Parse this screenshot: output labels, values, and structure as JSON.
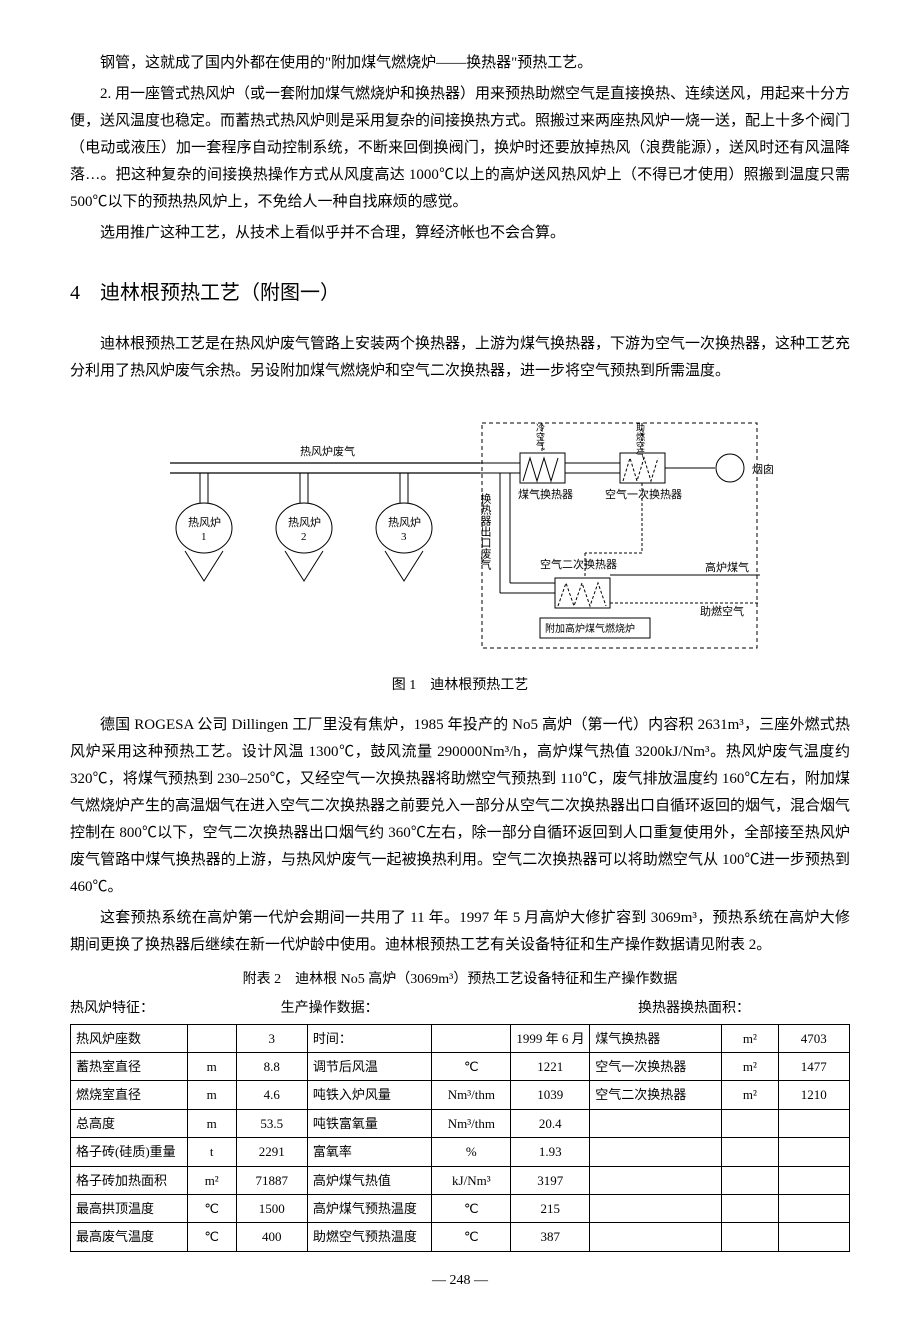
{
  "para1": "钢管，这就成了国内外都在使用的\"附加煤气燃烧炉——换热器\"预热工艺。",
  "para2": "2. 用一座管式热风炉（或一套附加煤气燃烧炉和换热器）用来预热助燃空气是直接换热、连续送风，用起来十分方便，送风温度也稳定。而蓄热式热风炉则是采用复杂的间接换热方式。照搬过来两座热风炉一烧一送，配上十多个阀门（电动或液压）加一套程序自动控制系统，不断来回倒换阀门，换炉时还要放掉热风（浪费能源），送风时还有风温降落…。把这种复杂的间接换热操作方式从风度高达 1000℃以上的高炉送风热风炉上（不得已才使用）照搬到温度只需 500℃以下的预热热风炉上，不免给人一种自找麻烦的感觉。",
  "para3": "选用推广这种工艺，从技术上看似乎并不合理，算经济帐也不会合算。",
  "heading4": "4　迪林根预热工艺（附图一）",
  "para4": "迪林根预热工艺是在热风炉废气管路上安装两个换热器，上游为煤气换热器，下游为空气一次换热器，这种工艺充分利用了热风炉废气余热。另设附加煤气燃烧炉和空气二次换热器，进一步将空气预热到所需温度。",
  "fig1_caption": "图 1　迪林根预热工艺",
  "diagram": {
    "stove_waste_gas": "热风炉废气",
    "stove1": "热风炉",
    "n1": "1",
    "stove2": "热风炉",
    "n2": "2",
    "stove3": "热风炉",
    "n3": "3",
    "outlet_waste": "换热器出口废气",
    "cold_air": "冷空气",
    "combustion_air": "助燃空气",
    "gas_exchanger": "煤气换热器",
    "air_primary": "空气一次换热器",
    "chimney": "烟囱",
    "air_secondary": "空气二次换热器",
    "bf_gas": "高炉煤气",
    "comb_air2": "助燃空气",
    "burner": "附加高炉煤气燃烧炉"
  },
  "para5": "德国 ROGESA 公司 Dillingen 工厂里没有焦炉，1985 年投产的 No5 高炉（第一代）内容积 2631m³，三座外燃式热风炉采用这种预热工艺。设计风温 1300℃，鼓风流量 290000Nm³/h，高炉煤气热值 3200kJ/Nm³。热风炉废气温度约 320℃，将煤气预热到 230–250℃，又经空气一次换热器将助燃空气预热到 110℃，废气排放温度约 160℃左右，附加煤气燃烧炉产生的高温烟气在进入空气二次换热器之前要兑入一部分从空气二次换热器出口自循环返回的烟气，混合烟气控制在 800℃以下，空气二次换热器出口烟气约 360℃左右，除一部分自循环返回到人口重复使用外，全部接至热风炉废气管路中煤气换热器的上游，与热风炉废气一起被换热利用。空气二次换热器可以将助燃空气从 100℃进一步预热到 460℃。",
  "para6": "这套预热系统在高炉第一代炉会期间一共用了 11 年。1997 年 5 月高炉大修扩容到 3069m³，预热系统在高炉大修期间更换了换热器后继续在新一代炉龄中使用。迪林根预热工艺有关设备特征和生产操作数据请见附表 2。",
  "table2_caption": "附表 2　迪林根 No5 高炉（3069m³）预热工艺设备特征和生产操作数据",
  "hlabel1": "热风炉特征：",
  "hlabel2": "生产操作数据：",
  "hlabel3": "换热器换热面积：",
  "table": {
    "rows": [
      [
        "热风炉座数",
        "",
        "3",
        "时间：",
        "",
        "1999 年 6 月",
        "煤气换热器",
        "m²",
        "4703"
      ],
      [
        "蓄热室直径",
        "m",
        "8.8",
        "调节后风温",
        "℃",
        "1221",
        "空气一次换热器",
        "m²",
        "1477"
      ],
      [
        "燃烧室直径",
        "m",
        "4.6",
        "吨铁入炉风量",
        "Nm³/thm",
        "1039",
        "空气二次换热器",
        "m²",
        "1210"
      ],
      [
        "总高度",
        "m",
        "53.5",
        "吨铁富氧量",
        "Nm³/thm",
        "20.4",
        "",
        "",
        ""
      ],
      [
        "格子砖(硅质)重量",
        "t",
        "2291",
        "富氧率",
        "%",
        "1.93",
        "",
        "",
        ""
      ],
      [
        "格子砖加热面积",
        "m²",
        "71887",
        "高炉煤气热值",
        "kJ/Nm³",
        "3197",
        "",
        "",
        ""
      ],
      [
        "最高拱顶温度",
        "℃",
        "1500",
        "高炉煤气预热温度",
        "℃",
        "215",
        "",
        "",
        ""
      ],
      [
        "最高废气温度",
        "℃",
        "400",
        "助燃空气预热温度",
        "℃",
        "387",
        "",
        "",
        ""
      ]
    ]
  },
  "page_num": "— 248 —"
}
